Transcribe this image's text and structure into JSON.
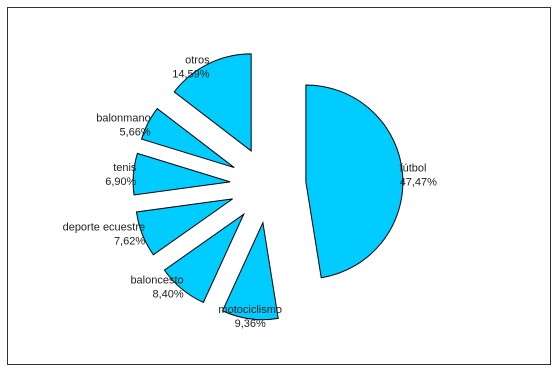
{
  "chart_data": {
    "type": "pie",
    "slices": [
      {
        "label": "fútbol",
        "value": 47.47,
        "value_text": "47,47%"
      },
      {
        "label": "motociclismo",
        "value": 9.36,
        "value_text": "9,36%"
      },
      {
        "label": "baloncesto",
        "value": 8.4,
        "value_text": "8,40%"
      },
      {
        "label": "deporte ecuestre",
        "value": 7.62,
        "value_text": "7,62%"
      },
      {
        "label": "tenis",
        "value": 6.9,
        "value_text": "6,90%"
      },
      {
        "label": "balonmano",
        "value": 5.66,
        "value_text": "5,66%"
      },
      {
        "label": "otros",
        "value": 14.59,
        "value_text": "14,59%"
      }
    ],
    "exploded": true,
    "legend": "none",
    "colors": {
      "fill": "#00ccff",
      "stroke": "#000000"
    }
  }
}
